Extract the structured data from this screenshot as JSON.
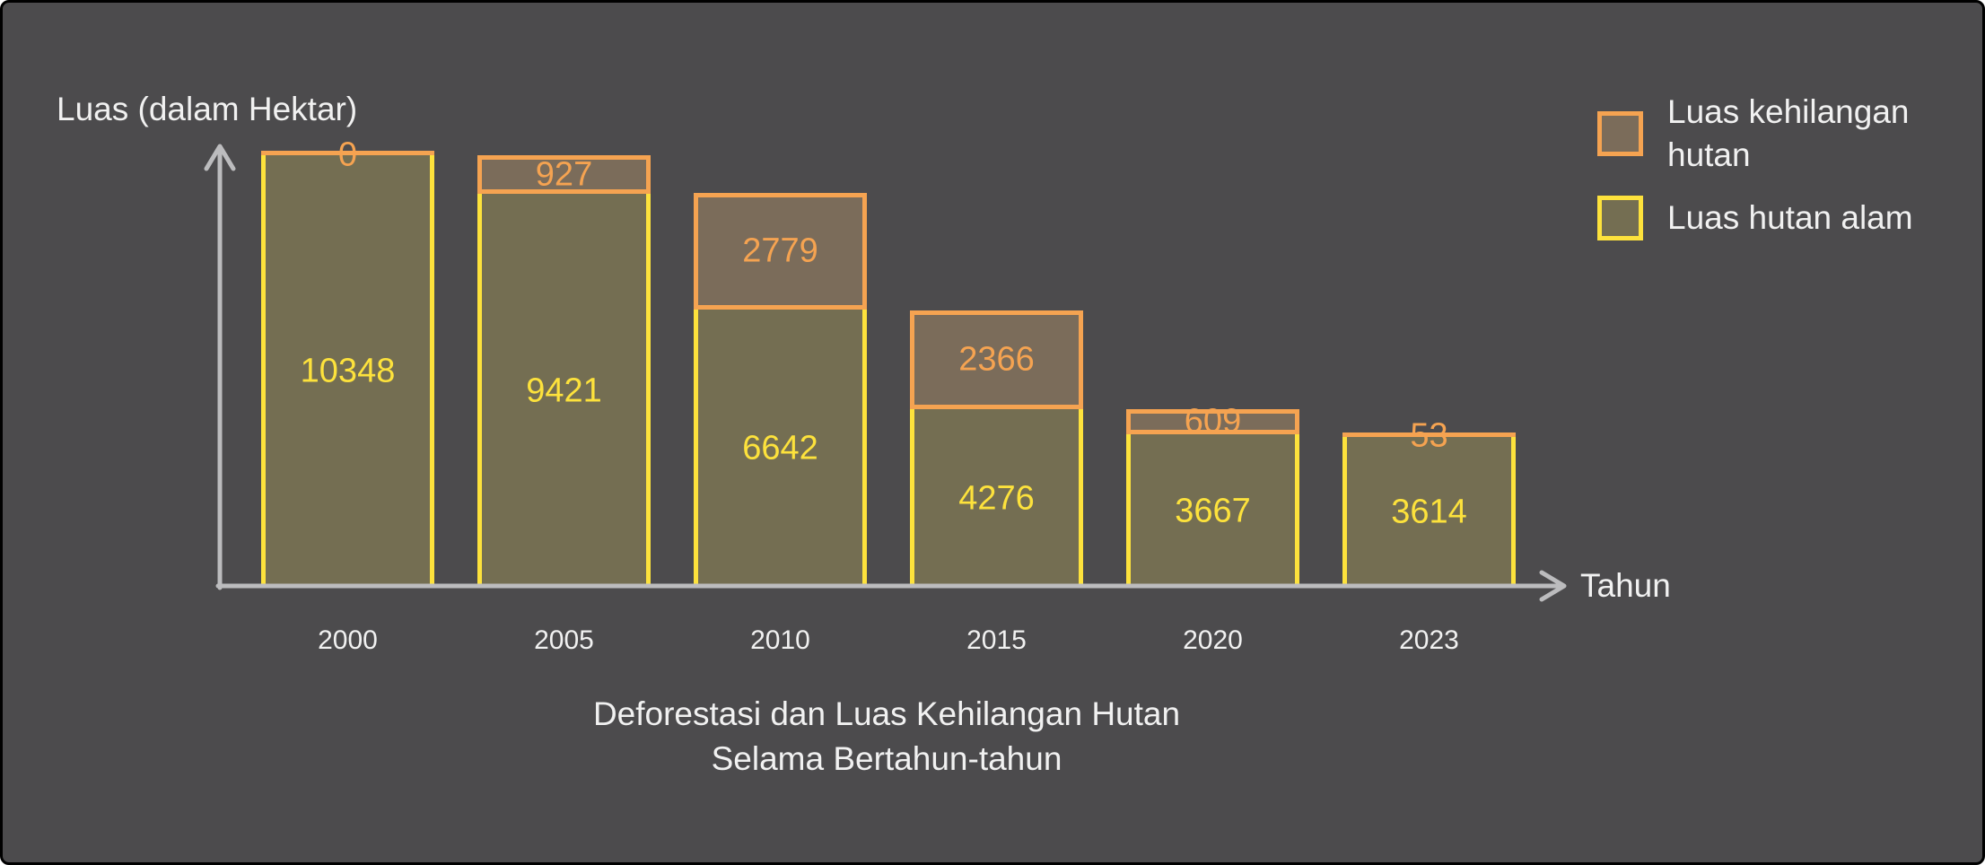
{
  "colors": {
    "background": "#4c4b4d",
    "axis": "#bcbcbe",
    "text": "#f1f1f1",
    "yellow": "#fde23c",
    "olive": "#746e52",
    "orange": "#f5a351",
    "brown": "#7b6c5a"
  },
  "chart_data": {
    "type": "bar",
    "stacked": true,
    "title_lines": [
      "Deforestasi dan Luas Kehilangan Hutan",
      "Selama Bertahun-tahun"
    ],
    "xlabel": "Tahun",
    "ylabel": "Luas (dalam Hektar)",
    "categories": [
      "2000",
      "2005",
      "2010",
      "2015",
      "2020",
      "2023"
    ],
    "series": [
      {
        "name": "Luas hutan alam",
        "values": [
          10348,
          9421,
          6642,
          4276,
          3667,
          3614
        ],
        "fill": "#746e52",
        "border": "#fde23c",
        "label_color": "#fde23c"
      },
      {
        "name": "Luas kehilangan hutan",
        "values": [
          0,
          927,
          2779,
          2366,
          609,
          53
        ],
        "fill": "#7b6c5a",
        "border": "#f5a351",
        "label_color": "#f5a351"
      }
    ],
    "legend": [
      {
        "label": "Luas kehilangan hutan",
        "swatch": "loss"
      },
      {
        "label": "Luas hutan alam",
        "swatch": "natural"
      }
    ],
    "legend_position": "top-right",
    "grid": false,
    "axis_arrows": true,
    "value_labels": "centered-in-segment"
  }
}
